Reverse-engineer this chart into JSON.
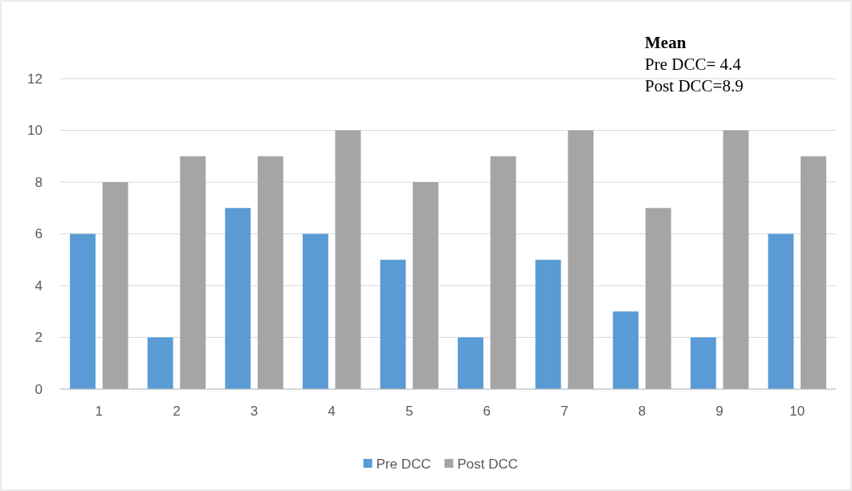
{
  "chart_data": {
    "type": "bar",
    "categories": [
      "1",
      "2",
      "3",
      "4",
      "5",
      "6",
      "7",
      "8",
      "9",
      "10"
    ],
    "series": [
      {
        "name": "Pre DCC",
        "color": "#5b9bd5",
        "values": [
          6,
          2,
          7,
          6,
          5,
          2,
          5,
          3,
          2,
          6
        ]
      },
      {
        "name": "Post DCC",
        "color": "#a5a5a5",
        "values": [
          8,
          9,
          9,
          10,
          8,
          9,
          10,
          7,
          10,
          9
        ]
      }
    ],
    "ylim": [
      0,
      12
    ],
    "yticks": [
      0,
      2,
      4,
      6,
      8,
      10,
      12
    ],
    "grid": "y",
    "legend": "bottom",
    "annotations": [
      "Mean",
      "Pre DCC= 4.4",
      "Post DCC=8.9"
    ]
  }
}
